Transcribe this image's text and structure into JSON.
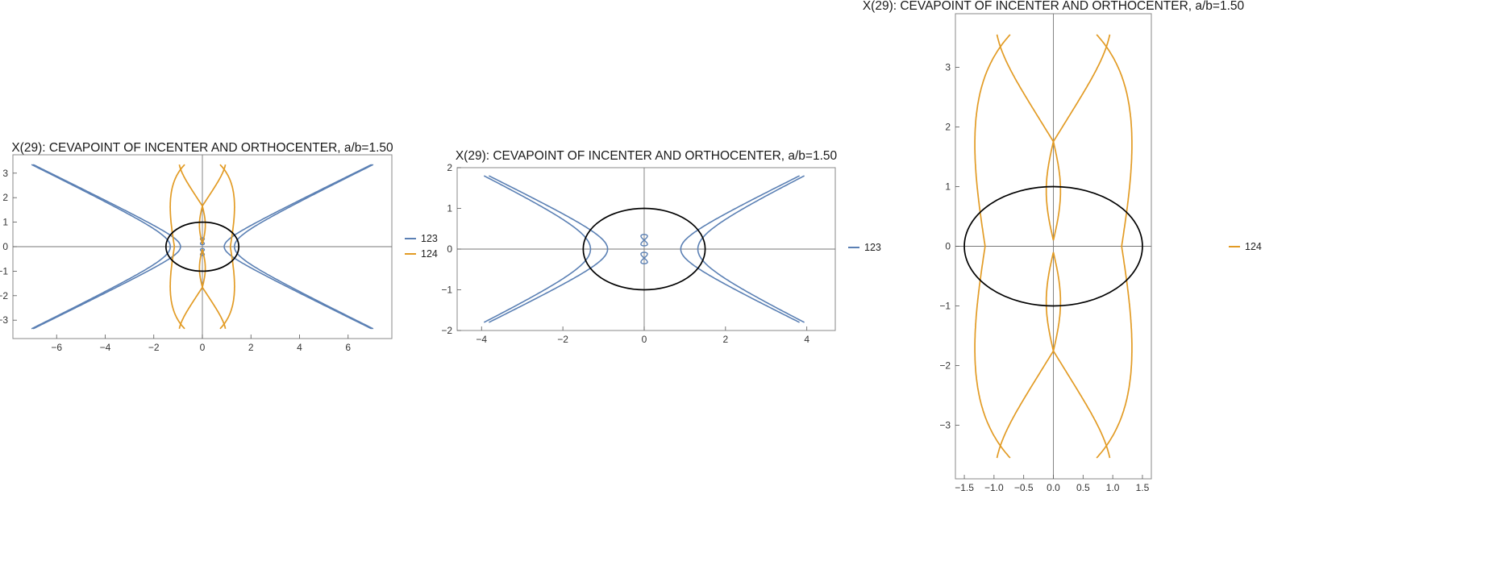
{
  "colors": {
    "series123": "#5b80b4",
    "series124": "#e29b24",
    "ellipse": "#000000",
    "axis": "#777777",
    "frame": "#888888"
  },
  "chart_data": [
    {
      "type": "line",
      "title": "X(29): CEVAPOINT OF INCENTER AND ORTHOCENTER, a/b=1.50",
      "xlim": [
        -7.8,
        7.8
      ],
      "ylim": [
        -3.75,
        3.75
      ],
      "xticks": [
        -6,
        -4,
        -2,
        0,
        2,
        4,
        6
      ],
      "yticks": [
        -3,
        -2,
        -1,
        0,
        1,
        2,
        3
      ],
      "ellipse": {
        "a": 1.5,
        "b": 1
      },
      "legend": {
        "position": "right",
        "entries": [
          "123",
          "124"
        ]
      },
      "series": [
        {
          "name": "123",
          "curve": "hyperbola_pairs",
          "params": [
            [
              0.9,
              0.485,
              3.35
            ],
            [
              1.32,
              0.485,
              3.35
            ]
          ]
        },
        {
          "name": "124",
          "curve": "petal_pair",
          "xscale": 1.0,
          "ylim_clip": 3.35
        }
      ]
    },
    {
      "type": "line",
      "title": "X(29): CEVAPOINT OF INCENTER AND ORTHOCENTER, a/b=1.50",
      "xlim": [
        -4.6,
        4.7
      ],
      "ylim": [
        -2.0,
        2.0
      ],
      "xticks": [
        -4,
        -2,
        0,
        2,
        4
      ],
      "yticks": [
        -2,
        -1,
        0,
        1,
        2
      ],
      "ellipse": {
        "a": 1.5,
        "b": 1
      },
      "legend": {
        "position": "right",
        "entries": [
          "123"
        ]
      },
      "series": [
        {
          "name": "123",
          "curve": "hyperbola_pairs",
          "params": [
            [
              0.9,
              0.485,
              1.8
            ],
            [
              1.32,
              0.485,
              1.8
            ]
          ]
        }
      ]
    },
    {
      "type": "line",
      "title": "X(29): CEVAPOINT OF INCENTER AND ORTHOCENTER, a/b=1.50",
      "xlim": [
        -1.65,
        1.65
      ],
      "ylim": [
        -3.9,
        3.9
      ],
      "xticks": [
        -1.5,
        -1.0,
        -0.5,
        0.0,
        0.5,
        1.0,
        1.5
      ],
      "xtick_labels": [
        "-1.5",
        "-1.0",
        "-0.5",
        "0.0",
        "0.5",
        "1.0",
        "1.5"
      ],
      "yticks": [
        -3,
        -2,
        -1,
        0,
        1,
        2,
        3
      ],
      "ellipse": {
        "a": 1.5,
        "b": 1
      },
      "legend": {
        "position": "right",
        "entries": [
          "124"
        ]
      },
      "series": [
        {
          "name": "124",
          "curve": "petal_pair",
          "xscale": 1.0,
          "ylim_clip": 3.55
        }
      ]
    }
  ]
}
